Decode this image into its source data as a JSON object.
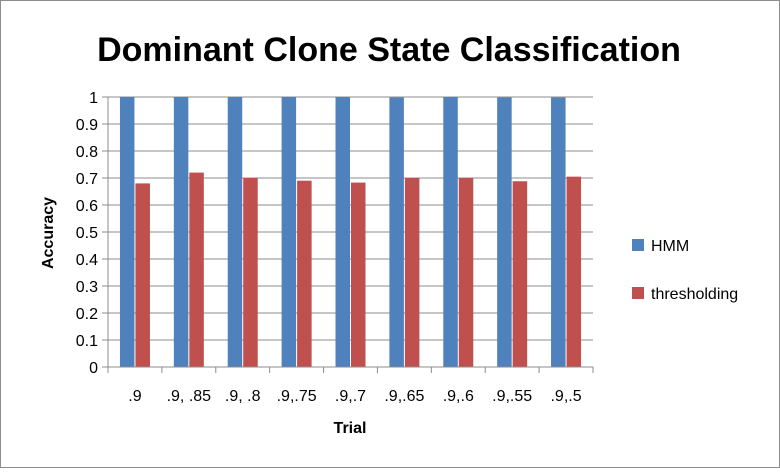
{
  "chart_data": {
    "type": "bar",
    "title": "Dominant Clone State Classification",
    "xlabel": "Trial",
    "ylabel": "Accuracy",
    "categories": [
      ".9",
      ".9, .85",
      ".9, .8",
      ".9,.75",
      ".9,.7",
      ".9,.65",
      ".9,.6",
      ".9,.55",
      ".9,.5"
    ],
    "series": [
      {
        "name": "HMM",
        "color": "#4f81bd",
        "values": [
          1.0,
          1.0,
          1.0,
          1.0,
          1.0,
          0.998,
          1.0,
          0.998,
          0.998
        ]
      },
      {
        "name": "thresholding",
        "color": "#c0504d",
        "values": [
          0.68,
          0.72,
          0.7,
          0.69,
          0.683,
          0.7,
          0.7,
          0.688,
          0.705
        ]
      }
    ],
    "ylim": [
      0,
      1
    ],
    "yticks": [
      "0",
      "0.1",
      "0.2",
      "0.3",
      "0.4",
      "0.5",
      "0.6",
      "0.7",
      "0.8",
      "0.9",
      "1"
    ],
    "grid": true,
    "legend_position": "right"
  }
}
